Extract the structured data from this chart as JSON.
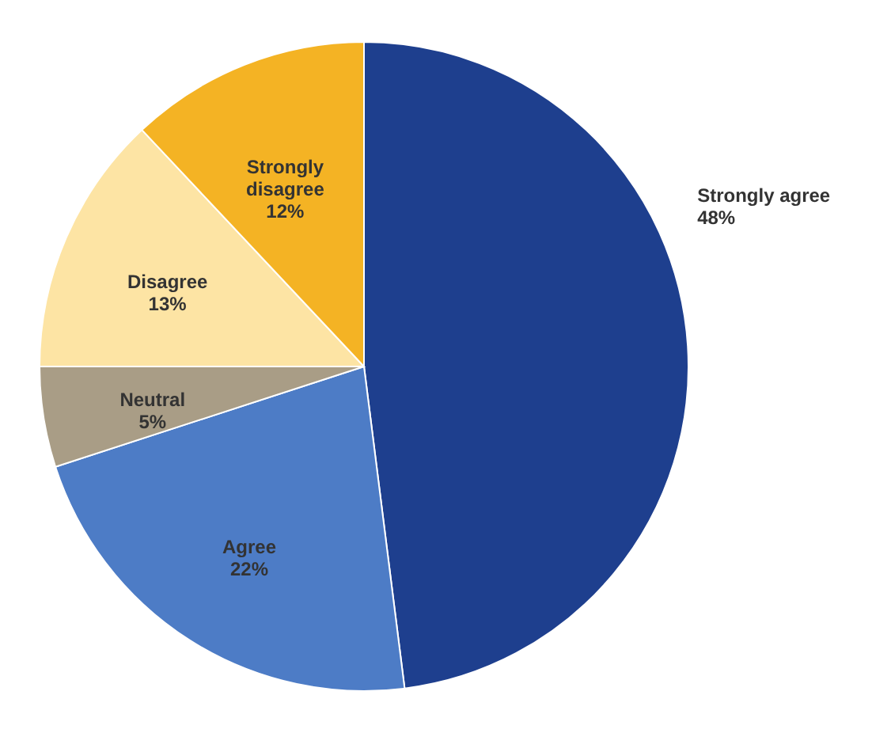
{
  "chart_data": {
    "type": "pie",
    "categories": [
      "Strongly agree",
      "Agree",
      "Neutral",
      "Disagree",
      "Strongly disagree"
    ],
    "values": [
      48,
      22,
      5,
      13,
      12
    ],
    "colors": [
      "#1e3f8e",
      "#4d7cc6",
      "#a99d86",
      "#fde4a4",
      "#f4b324"
    ],
    "value_labels": [
      "48%",
      "22%",
      "5%",
      "13%",
      "12%"
    ]
  }
}
